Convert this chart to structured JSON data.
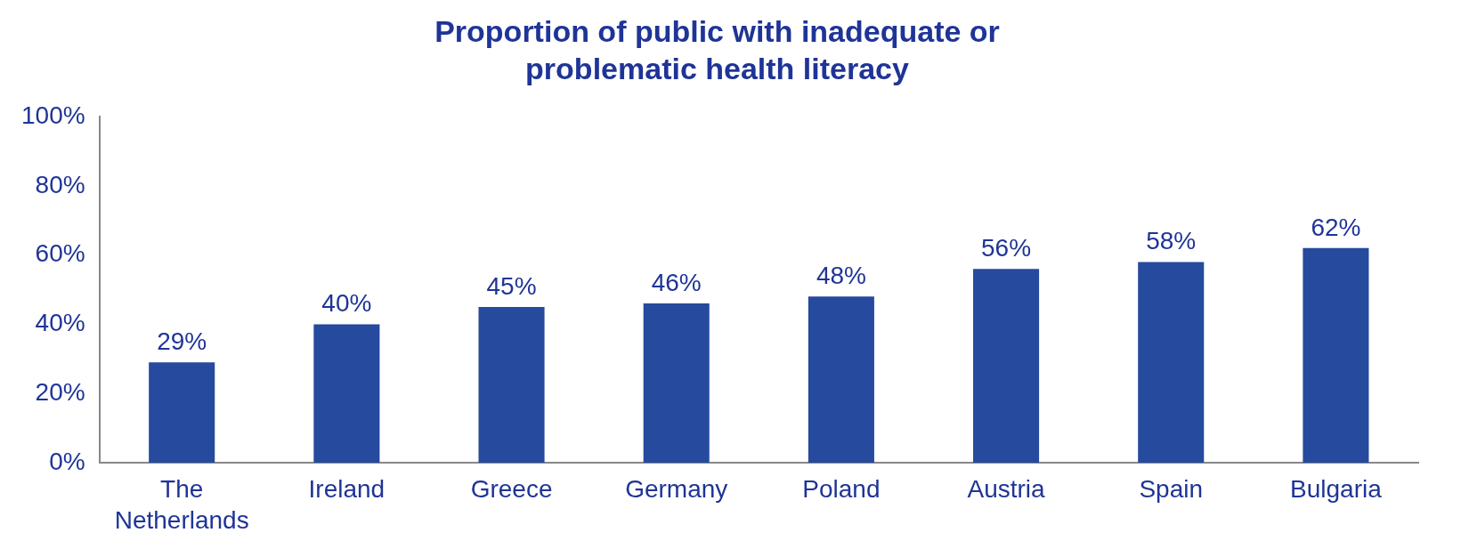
{
  "chart_data": {
    "type": "bar",
    "title": "Proportion of public with inadequate or problematic health literacy",
    "categories": [
      "The Netherlands",
      "Ireland",
      "Greece",
      "Germany",
      "Poland",
      "Austria",
      "Spain",
      "Bulgaria"
    ],
    "values": [
      29,
      40,
      45,
      46,
      48,
      56,
      58,
      62
    ],
    "value_labels": [
      "29%",
      "40%",
      "45%",
      "46%",
      "48%",
      "56%",
      "58%",
      "62%"
    ],
    "color": "#254a9e",
    "ylim": [
      0,
      100
    ],
    "yticks": [
      {
        "value": 0,
        "label": "0%"
      },
      {
        "value": 20,
        "label": "20%"
      },
      {
        "value": 40,
        "label": "40%"
      },
      {
        "value": 60,
        "label": "60%"
      },
      {
        "value": 80,
        "label": "80%"
      },
      {
        "value": 100,
        "label": "100%"
      }
    ],
    "grid": false,
    "legend": false
  }
}
